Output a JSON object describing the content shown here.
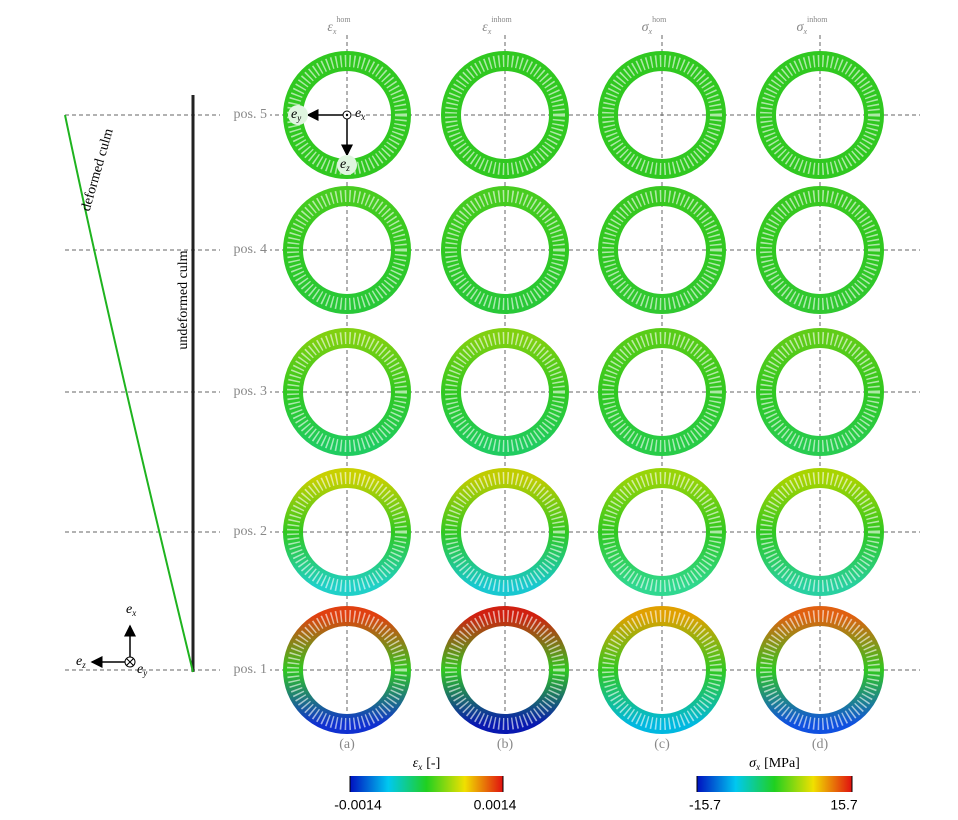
{
  "columns": [
    {
      "symbol": "ε",
      "sub": "x",
      "sup": "hom"
    },
    {
      "symbol": "ε",
      "sub": "x",
      "sup": "inhom"
    },
    {
      "symbol": "σ",
      "sub": "x",
      "sup": "hom"
    },
    {
      "symbol": "σ",
      "sub": "x",
      "sup": "inhom"
    }
  ],
  "rows": [
    "pos. 5",
    "pos. 4",
    "pos. 3",
    "pos. 2",
    "pos. 1"
  ],
  "panels": [
    "(a)",
    "(b)",
    "(c)",
    "(d)"
  ],
  "culm_labels": {
    "deformed": "deformed culm",
    "undeformed": "undeformed culm"
  },
  "global_axes": {
    "x": {
      "symbol": "e",
      "sub": "x"
    },
    "y": {
      "symbol": "e",
      "sub": "y"
    },
    "z": {
      "symbol": "e",
      "sub": "z"
    }
  },
  "local_axes": {
    "x": {
      "symbol": "e",
      "sub": "x"
    },
    "y": {
      "symbol": "e",
      "sub": "y"
    },
    "z": {
      "symbol": "e",
      "sub": "z"
    }
  },
  "colorbars": [
    {
      "symbol": "ε",
      "sub": "x",
      "unit": "[-]",
      "min": -0.0014,
      "max": 0.0014
    },
    {
      "symbol": "σ",
      "sub": "x",
      "unit": "[MPa]",
      "min": -15.7,
      "max": 15.7
    }
  ]
}
